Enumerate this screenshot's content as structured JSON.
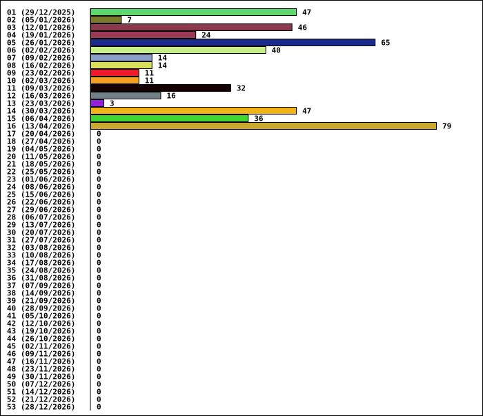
{
  "chart_data": {
    "type": "bar",
    "orientation": "horizontal",
    "categories": [
      "01 (29/12/2025)",
      "02 (05/01/2026)",
      "03 (12/01/2026)",
      "04 (19/01/2026)",
      "05 (26/01/2026)",
      "06 (02/02/2026)",
      "07 (09/02/2026)",
      "08 (16/02/2026)",
      "09 (23/02/2026)",
      "10 (02/03/2026)",
      "11 (09/03/2026)",
      "12 (16/03/2026)",
      "13 (23/03/2026)",
      "14 (30/03/2026)",
      "15 (06/04/2026)",
      "16 (13/04/2026)",
      "17 (20/04/2026)",
      "18 (27/04/2026)",
      "19 (04/05/2026)",
      "20 (11/05/2026)",
      "21 (18/05/2026)",
      "22 (25/05/2026)",
      "23 (01/06/2026)",
      "24 (08/06/2026)",
      "25 (15/06/2026)",
      "26 (22/06/2026)",
      "27 (29/06/2026)",
      "28 (06/07/2026)",
      "29 (13/07/2026)",
      "30 (20/07/2026)",
      "31 (27/07/2026)",
      "32 (03/08/2026)",
      "33 (10/08/2026)",
      "34 (17/08/2026)",
      "35 (24/08/2026)",
      "36 (31/08/2026)",
      "37 (07/09/2026)",
      "38 (14/09/2026)",
      "39 (21/09/2026)",
      "40 (28/09/2026)",
      "41 (05/10/2026)",
      "42 (12/10/2026)",
      "43 (19/10/2026)",
      "44 (26/10/2026)",
      "45 (02/11/2026)",
      "46 (09/11/2026)",
      "47 (16/11/2026)",
      "48 (23/11/2026)",
      "49 (30/11/2026)",
      "50 (07/12/2026)",
      "51 (14/12/2026)",
      "52 (21/12/2026)",
      "53 (28/12/2026)"
    ],
    "values": [
      47,
      7,
      46,
      24,
      65,
      40,
      14,
      14,
      11,
      11,
      32,
      16,
      3,
      47,
      36,
      79,
      0,
      0,
      0,
      0,
      0,
      0,
      0,
      0,
      0,
      0,
      0,
      0,
      0,
      0,
      0,
      0,
      0,
      0,
      0,
      0,
      0,
      0,
      0,
      0,
      0,
      0,
      0,
      0,
      0,
      0,
      0,
      0,
      0,
      0,
      0,
      0,
      0
    ],
    "colors": [
      "#5ed86d",
      "#7a7a2a",
      "#8b3a4e",
      "#9a3a55",
      "#1c2a8c",
      "#c8ee88",
      "#8aa0c8",
      "#d8e05a",
      "#ee1c2a",
      "#f5a020",
      "#140000",
      "#728088",
      "#9420d8",
      "#f0b418",
      "#40d830",
      "#c8a830",
      "#ffffff",
      "#ffffff",
      "#ffffff",
      "#ffffff",
      "#ffffff",
      "#ffffff",
      "#ffffff",
      "#ffffff",
      "#ffffff",
      "#ffffff",
      "#ffffff",
      "#ffffff",
      "#ffffff",
      "#ffffff",
      "#ffffff",
      "#ffffff",
      "#ffffff",
      "#ffffff",
      "#ffffff",
      "#ffffff",
      "#ffffff",
      "#ffffff",
      "#ffffff",
      "#ffffff",
      "#ffffff",
      "#ffffff",
      "#ffffff",
      "#ffffff",
      "#ffffff",
      "#ffffff",
      "#ffffff",
      "#ffffff",
      "#ffffff",
      "#ffffff",
      "#ffffff",
      "#ffffff",
      "#ffffff"
    ],
    "xlim": [
      0,
      79
    ],
    "title": "",
    "xlabel": "",
    "ylabel": "",
    "grid": false,
    "legend": "none"
  }
}
